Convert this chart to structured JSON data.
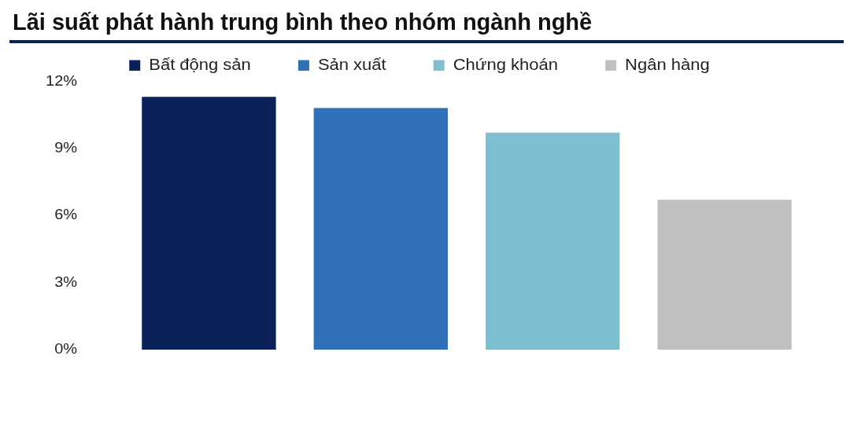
{
  "chart_data": {
    "type": "bar",
    "title": "Lãi suất phát hành trung bình theo nhóm ngành nghề",
    "categories": [
      null
    ],
    "series": [
      {
        "name": "Bất động sản",
        "color": "#0a2259",
        "values": [
          11.3
        ]
      },
      {
        "name": "Sản xuất",
        "color": "#2e6fb8",
        "values": [
          10.8
        ]
      },
      {
        "name": "Chứng khoán",
        "color": "#7fbfd2",
        "values": [
          9.7
        ]
      },
      {
        "name": "Ngân hàng",
        "color": "#c0c0c0",
        "values": [
          6.7
        ]
      }
    ],
    "ylim": [
      0,
      12
    ],
    "yticks": [
      {
        "value": 0,
        "label": "0%"
      },
      {
        "value": 3,
        "label": "3%"
      },
      {
        "value": 6,
        "label": "6%"
      },
      {
        "value": 9,
        "label": "9%"
      },
      {
        "value": 12,
        "label": "12%"
      }
    ],
    "grid": false,
    "legend": "top",
    "tick_labels": "y"
  }
}
